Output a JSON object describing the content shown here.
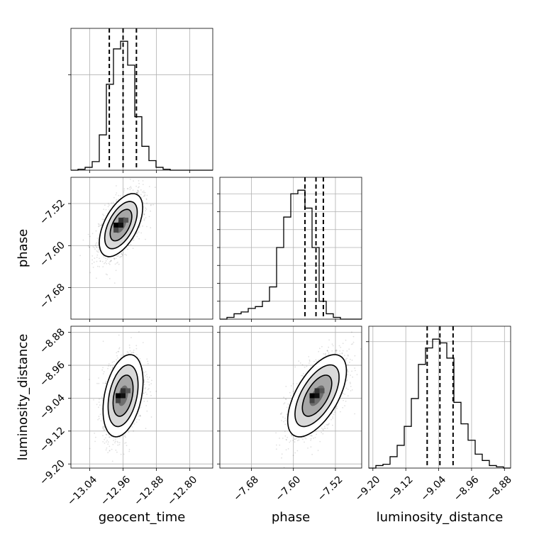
{
  "chart_data": {
    "type": "corner",
    "grid": true,
    "parameters": [
      {
        "name": "geocent_time",
        "label": "geocent_time",
        "range": [
          -13.085,
          -12.745
        ],
        "ticks": [
          -13.04,
          -12.96,
          -12.88,
          -12.8
        ],
        "tick_labels": [
          "−13.04",
          "−12.96",
          "−12.88",
          "−12.80"
        ],
        "quantiles": [
          -12.993,
          -12.96,
          -12.928
        ]
      },
      {
        "name": "phase",
        "label": "phase",
        "range": [
          -7.74,
          -7.47
        ],
        "ticks": [
          -7.68,
          -7.6,
          -7.52
        ],
        "tick_labels": [
          "−7.68",
          "−7.60",
          "−7.52"
        ],
        "quantiles": [
          -7.578,
          -7.557,
          -7.543
        ]
      },
      {
        "name": "luminosity_distance",
        "label": "luminosity_distance",
        "range": [
          -9.21,
          -8.865
        ],
        "ticks": [
          -9.2,
          -9.12,
          -9.04,
          -8.96,
          -8.88
        ],
        "tick_labels": [
          "−9.20",
          "−9.12",
          "−9.04",
          "−8.96",
          "−8.88"
        ],
        "quantiles": [
          -9.068,
          -9.037,
          -9.005
        ]
      }
    ],
    "histograms": [
      {
        "param": "geocent_time",
        "bin_edges": [
          -13.085,
          -13.068,
          -13.051,
          -13.034,
          -13.017,
          -13.0,
          -12.983,
          -12.966,
          -12.949,
          -12.932,
          -12.915,
          -12.898,
          -12.881,
          -12.864,
          -12.847,
          -12.83,
          -12.813,
          -12.796,
          -12.779,
          -12.762,
          -12.745
        ],
        "counts": [
          0,
          1,
          3,
          9,
          37,
          90,
          127,
          135,
          110,
          56,
          25,
          10,
          3,
          1,
          0,
          0,
          0,
          0,
          0,
          0
        ]
      },
      {
        "param": "phase",
        "bin_edges": [
          -7.74,
          -7.7265,
          -7.713,
          -7.6995,
          -7.686,
          -7.6725,
          -7.659,
          -7.6455,
          -7.632,
          -7.6185,
          -7.605,
          -7.5915,
          -7.578,
          -7.5645,
          -7.551,
          -7.5375,
          -7.524,
          -7.5105,
          -7.497,
          -7.4835,
          -7.47
        ],
        "counts": [
          0,
          1,
          3,
          4,
          6,
          7,
          10,
          18,
          40,
          57,
          70,
          72,
          62,
          40,
          10,
          3,
          1,
          0,
          0,
          0
        ]
      },
      {
        "param": "luminosity_distance",
        "bin_edges": [
          -9.21,
          -9.19275,
          -9.1755,
          -9.15825,
          -9.141,
          -9.12375,
          -9.1065,
          -9.08925,
          -9.072,
          -9.05475,
          -9.0375,
          -9.02025,
          -9.003,
          -8.98575,
          -8.9685,
          -8.95125,
          -8.934,
          -8.91675,
          -8.8995,
          -8.88225,
          -8.865
        ],
        "counts": [
          0,
          2,
          3,
          9,
          18,
          33,
          55,
          82,
          95,
          102,
          99,
          87,
          52,
          35,
          22,
          11,
          6,
          2,
          1,
          0
        ]
      }
    ],
    "pairs": [
      {
        "x": "geocent_time",
        "y": "phase",
        "center": [
          -12.965,
          -7.561
        ],
        "std": [
          0.026,
          0.03
        ],
        "correlation": 0.55
      },
      {
        "x": "geocent_time",
        "y": "luminosity_distance",
        "center": [
          -12.96,
          -9.034
        ],
        "std": [
          0.024,
          0.05
        ],
        "correlation": 0.35
      },
      {
        "x": "phase",
        "y": "luminosity_distance",
        "center": [
          -7.555,
          -9.034
        ],
        "std": [
          0.028,
          0.05
        ],
        "correlation": 0.6
      }
    ],
    "contour_levels_sigma": [
      0.5,
      1.0,
      1.5,
      2.0
    ]
  }
}
